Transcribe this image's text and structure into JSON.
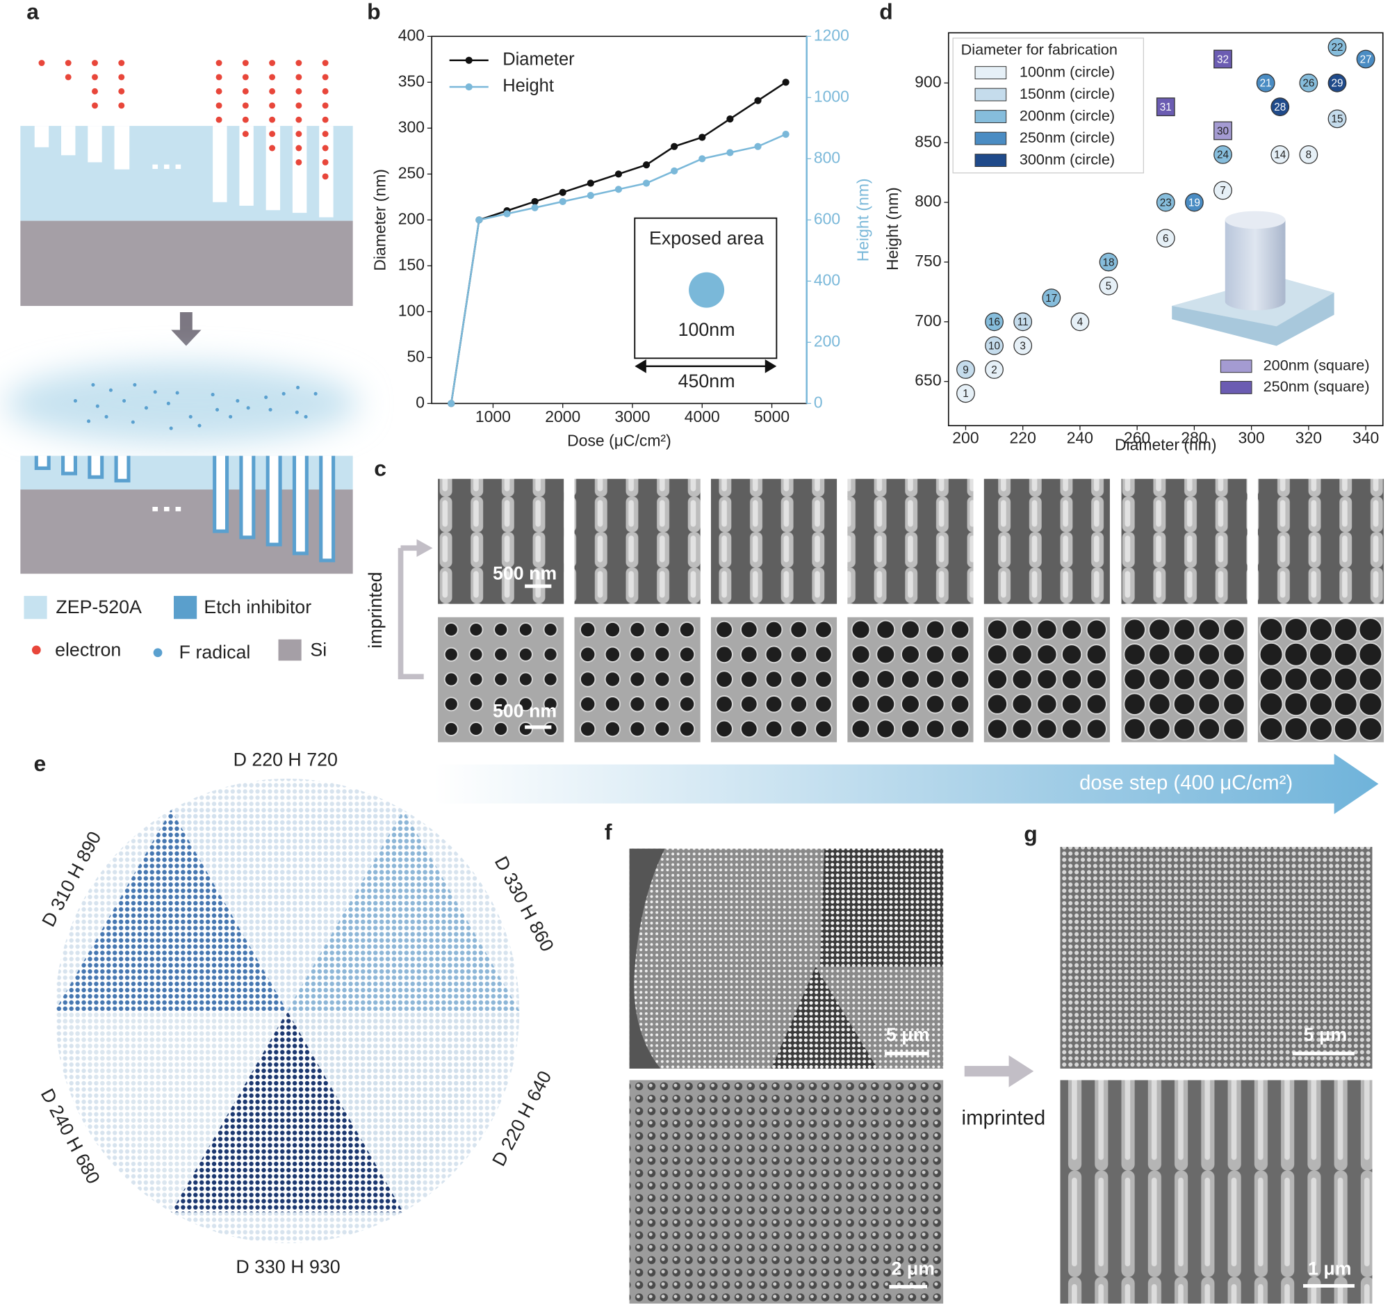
{
  "panel_labels": [
    "a",
    "b",
    "c",
    "d",
    "e",
    "f",
    "g"
  ],
  "panel_a": {
    "legend": [
      "ZEP-520A",
      "Etch inhibitor",
      "electron",
      "F radical",
      "Si"
    ]
  },
  "chart_data": [
    {
      "type": "line",
      "x_label": "Dose (μC/cm²)",
      "y_label": "Diameter (nm)",
      "y2_label": "Height (nm)",
      "x": [
        400,
        800,
        1200,
        1600,
        2000,
        2400,
        2800,
        3200,
        3600,
        4000,
        4400,
        4800,
        5200
      ],
      "xlim": [
        120,
        5500
      ],
      "xticks": [
        1000,
        2000,
        3000,
        4000,
        5000
      ],
      "ylim": [
        0,
        400
      ],
      "yticks": [
        0,
        50,
        100,
        150,
        200,
        250,
        300,
        350,
        400
      ],
      "y2lim": [
        0,
        1200
      ],
      "y2ticks": [
        0,
        200,
        400,
        600,
        800,
        1000,
        1200
      ],
      "legend": "upper left",
      "series": [
        {
          "name": "Diameter",
          "color": "#111111",
          "values": [
            0,
            200,
            210,
            220,
            230,
            240,
            250,
            260,
            280,
            290,
            310,
            330,
            350
          ]
        },
        {
          "name": "Height",
          "color": "#7ab8d9",
          "axis": "y2",
          "values": [
            0,
            600,
            620,
            640,
            660,
            680,
            700,
            720,
            760,
            800,
            820,
            840,
            880
          ]
        }
      ],
      "annotations": [
        "Exposed area",
        "100nm",
        "450nm"
      ]
    },
    {
      "type": "scatter",
      "x_label": "Diameter (nm)",
      "y_label": "Height (nm)",
      "legend_title": "Diameter for fabrication",
      "xlim": [
        194,
        346
      ],
      "xticks": [
        200,
        220,
        240,
        260,
        280,
        300,
        320,
        340
      ],
      "ylim": [
        613,
        942
      ],
      "yticks": [
        650,
        700,
        750,
        800,
        850,
        900
      ],
      "series": [
        {
          "name": "100nm (circle)",
          "color": "#e6f0f7",
          "marker": "circle",
          "x": [
            200,
            210,
            220,
            240,
            250,
            270,
            290,
            320,
            310
          ],
          "values": [
            640,
            660,
            680,
            700,
            730,
            770,
            810,
            840,
            840
          ],
          "point_labels": [
            "1",
            "2",
            "3",
            "4",
            "5",
            "6",
            "7",
            "8",
            "14"
          ]
        },
        {
          "name": "150nm (circle)",
          "color": "#c5dcec",
          "marker": "circle",
          "x": [
            200,
            210,
            220,
            330
          ],
          "values": [
            660,
            680,
            700,
            870
          ],
          "point_labels": [
            "9",
            "10",
            "11",
            "15"
          ]
        },
        {
          "name": "200nm (circle)",
          "color": "#86bddc",
          "marker": "circle",
          "x": [
            210,
            230,
            250,
            270,
            290,
            330,
            320
          ],
          "values": [
            700,
            720,
            750,
            800,
            840,
            930,
            900
          ],
          "point_labels": [
            "16",
            "17",
            "18",
            "23",
            "24",
            "22",
            "26"
          ]
        },
        {
          "name": "250nm (circle)",
          "color": "#4a8cc3",
          "marker": "circle",
          "x": [
            280,
            305,
            340
          ],
          "values": [
            800,
            900,
            920
          ],
          "point_labels": [
            "19",
            "21",
            "27"
          ]
        },
        {
          "name": "300nm (circle)",
          "color": "#1f4a8a",
          "marker": "circle",
          "x": [
            310,
            330
          ],
          "values": [
            880,
            900
          ],
          "point_labels": [
            "28",
            "29"
          ]
        },
        {
          "name": "200nm (square)",
          "color": "#a49bd2",
          "marker": "square",
          "x": [
            290
          ],
          "values": [
            860
          ],
          "point_labels": [
            "30"
          ]
        },
        {
          "name": "250nm (square)",
          "color": "#6b5cb2",
          "marker": "square",
          "x": [
            270,
            290
          ],
          "values": [
            880,
            920
          ],
          "point_labels": [
            "31",
            "32"
          ]
        }
      ]
    }
  ],
  "panel_c": {
    "side_label": "imprinted",
    "scale_bars": [
      "500 nm",
      "500 nm"
    ],
    "arrow_label": "dose step (400 μC/cm²)"
  },
  "panel_e": {
    "labels": [
      "D 220 H 720",
      "D 330 H 860",
      "D 220 H 640",
      "D 330 H 930",
      "D 240 H 680",
      "D 310 H 890"
    ]
  },
  "panel_f": {
    "scale_bars": [
      "5 μm",
      "2 μm"
    ]
  },
  "between_f_g": "imprinted",
  "panel_g": {
    "scale_bars": [
      "5 μm",
      "1 μm"
    ]
  }
}
